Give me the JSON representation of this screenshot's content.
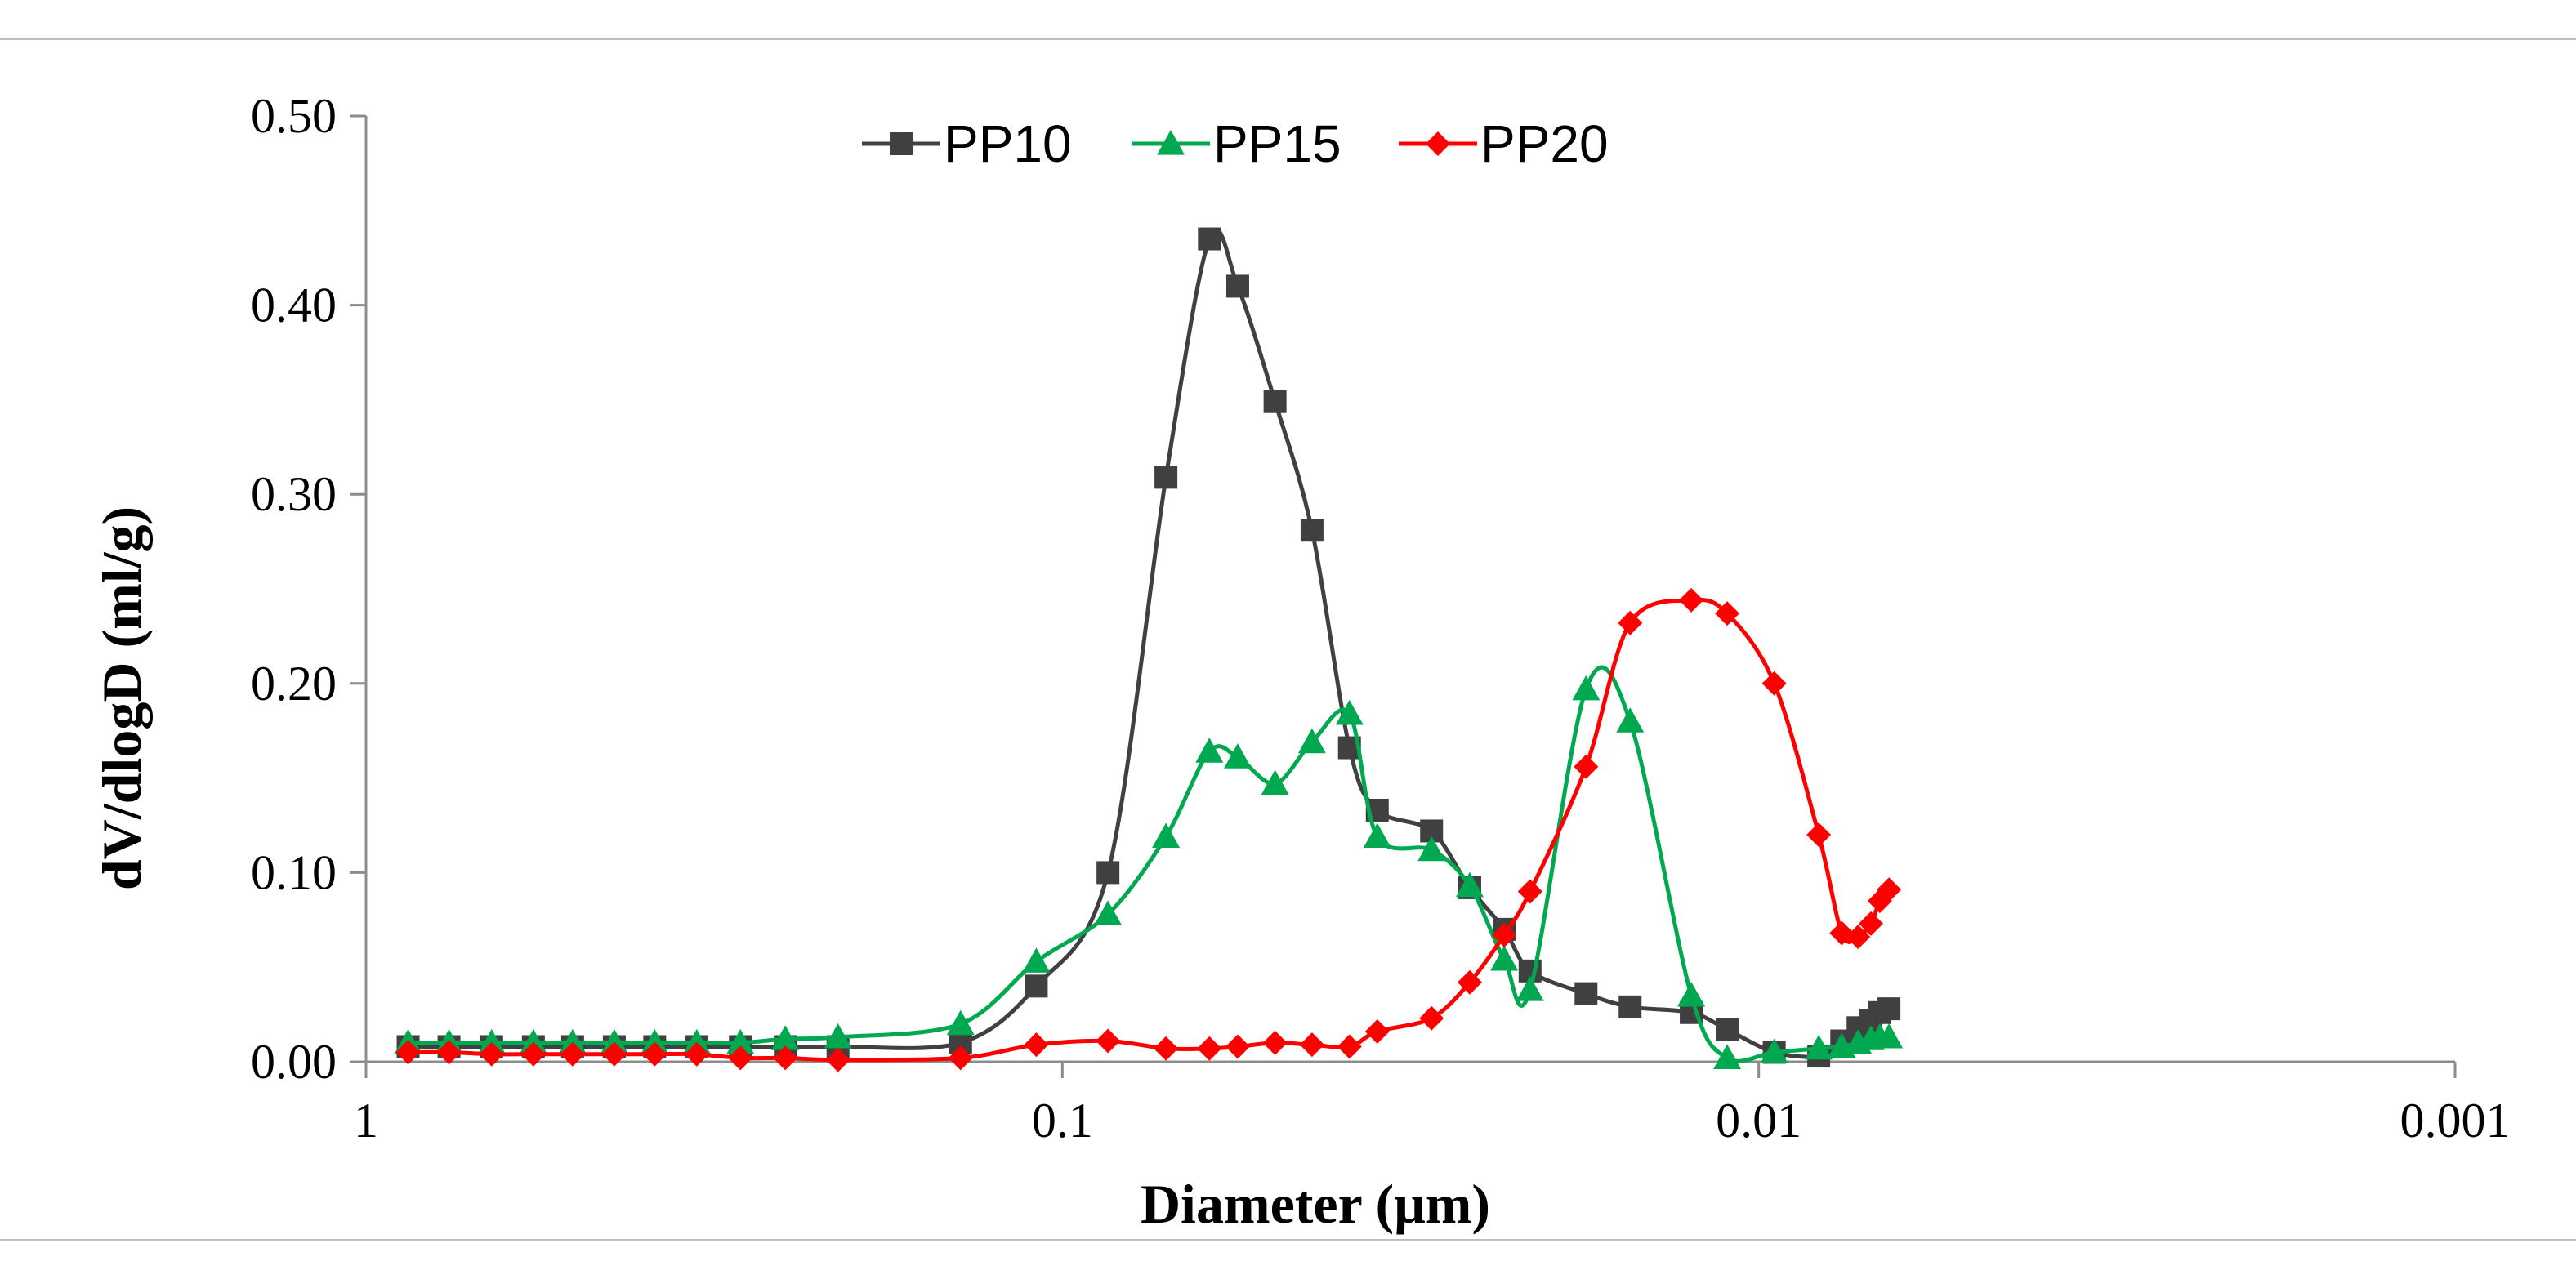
{
  "chart_data": {
    "type": "line",
    "title": "",
    "xlabel": "Diameter (μm)",
    "ylabel": "dV/dlogD (ml/g)",
    "x_scale": "log",
    "x_reversed": true,
    "xlim": [
      1,
      0.001
    ],
    "ylim": [
      0,
      0.5
    ],
    "x_ticks": [
      1,
      0.1,
      0.01,
      0.001
    ],
    "x_tick_labels": [
      "1",
      "0.1",
      "0.01",
      "0.001"
    ],
    "y_ticks": [
      0,
      0.1,
      0.2,
      0.3,
      0.4,
      0.5
    ],
    "y_tick_labels": [
      "0.00",
      "0.10",
      "0.20",
      "0.30",
      "0.40",
      "0.50"
    ],
    "grid": false,
    "legend_position": "top-center",
    "series": [
      {
        "name": "PP10",
        "color": "#404040",
        "marker": "square",
        "x": [
          0.87,
          0.76,
          0.66,
          0.575,
          0.505,
          0.44,
          0.385,
          0.335,
          0.29,
          0.25,
          0.21,
          0.14,
          0.109,
          0.086,
          0.071,
          0.0615,
          0.056,
          0.0495,
          0.0438,
          0.0387,
          0.0353,
          0.0295,
          0.026,
          0.0232,
          0.0213,
          0.0177,
          0.0153,
          0.0125,
          0.0111,
          0.0095,
          0.0082,
          0.0076,
          0.0072,
          0.0069,
          0.0067,
          0.0065
        ],
        "y": [
          0.008,
          0.008,
          0.008,
          0.008,
          0.008,
          0.008,
          0.008,
          0.008,
          0.008,
          0.008,
          0.008,
          0.01,
          0.04,
          0.1,
          0.309,
          0.435,
          0.41,
          0.349,
          0.281,
          0.166,
          0.133,
          0.122,
          0.092,
          0.07,
          0.048,
          0.036,
          0.029,
          0.026,
          0.017,
          0.005,
          0.003,
          0.011,
          0.018,
          0.022,
          0.026,
          0.028
        ]
      },
      {
        "name": "PP15",
        "color": "#00a84f",
        "marker": "triangle",
        "x": [
          0.87,
          0.76,
          0.66,
          0.575,
          0.505,
          0.44,
          0.385,
          0.335,
          0.29,
          0.25,
          0.21,
          0.14,
          0.109,
          0.086,
          0.071,
          0.0615,
          0.056,
          0.0495,
          0.0438,
          0.0387,
          0.0353,
          0.0295,
          0.026,
          0.0232,
          0.0213,
          0.0177,
          0.0153,
          0.0125,
          0.0111,
          0.0095,
          0.0082,
          0.0076,
          0.0072,
          0.0069,
          0.0067,
          0.0065
        ],
        "y": [
          0.01,
          0.01,
          0.01,
          0.01,
          0.01,
          0.01,
          0.01,
          0.01,
          0.01,
          0.012,
          0.013,
          0.02,
          0.053,
          0.078,
          0.119,
          0.164,
          0.161,
          0.147,
          0.169,
          0.184,
          0.119,
          0.112,
          0.093,
          0.054,
          0.038,
          0.197,
          0.18,
          0.035,
          0.002,
          0.005,
          0.007,
          0.008,
          0.01,
          0.012,
          0.013,
          0.013
        ]
      },
      {
        "name": "PP20",
        "color": "#ff0000",
        "marker": "diamond",
        "x": [
          0.87,
          0.76,
          0.66,
          0.575,
          0.505,
          0.44,
          0.385,
          0.335,
          0.29,
          0.25,
          0.21,
          0.14,
          0.109,
          0.086,
          0.071,
          0.0615,
          0.056,
          0.0495,
          0.0438,
          0.0387,
          0.0353,
          0.0295,
          0.026,
          0.0232,
          0.0213,
          0.0177,
          0.0153,
          0.0125,
          0.0111,
          0.0095,
          0.0082,
          0.0076,
          0.0072,
          0.0069,
          0.0067,
          0.0065
        ],
        "y": [
          0.005,
          0.005,
          0.004,
          0.004,
          0.004,
          0.004,
          0.004,
          0.004,
          0.002,
          0.002,
          0.001,
          0.002,
          0.009,
          0.011,
          0.007,
          0.007,
          0.008,
          0.01,
          0.009,
          0.008,
          0.016,
          0.023,
          0.042,
          0.067,
          0.09,
          0.156,
          0.232,
          0.244,
          0.237,
          0.2,
          0.12,
          0.068,
          0.066,
          0.073,
          0.085,
          0.091
        ]
      }
    ]
  }
}
